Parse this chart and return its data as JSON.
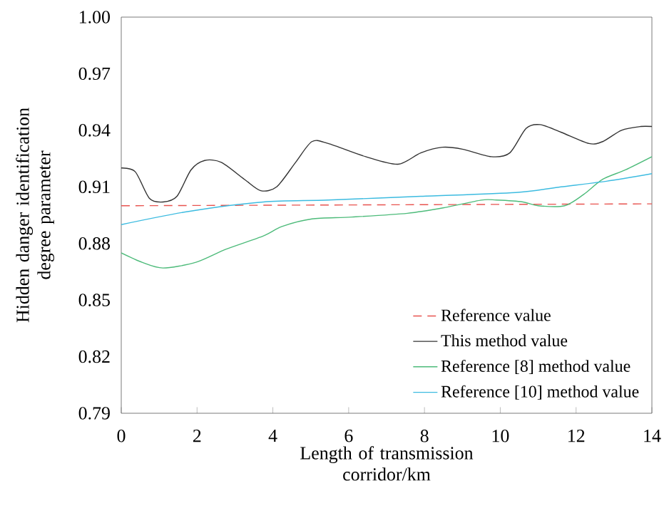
{
  "chart_data": {
    "type": "line",
    "xlabel": "Length of transmission corridor/km",
    "ylabel": "Hidden danger identification degree parameter",
    "xlim": [
      0,
      14
    ],
    "ylim": [
      0.79,
      1.0
    ],
    "xticks": [
      0,
      2,
      4,
      6,
      8,
      10,
      12,
      14
    ],
    "yticks": [
      {
        "value": 0.79,
        "label": "0.79"
      },
      {
        "value": 0.82,
        "label": "0.82"
      },
      {
        "value": 0.85,
        "label": "0.85"
      },
      {
        "value": 0.88,
        "label": "0.88"
      },
      {
        "value": 0.91,
        "label": "0.91"
      },
      {
        "value": 0.94,
        "label": "0.94"
      },
      {
        "value": 0.97,
        "label": "0.97"
      },
      {
        "value": 1.0,
        "label": "1.00"
      }
    ],
    "grid": false,
    "legend": "bottom right",
    "marker": "none",
    "series": [
      {
        "name": "Reference value",
        "color": "#e8534f",
        "line_style": "dashed",
        "x": [
          0,
          14
        ],
        "values": [
          0.9,
          0.901
        ]
      },
      {
        "name": "This method value",
        "color": "#333333",
        "line_style": "solid",
        "x": [
          0,
          0.37,
          0.74,
          1.1,
          1.47,
          1.84,
          2.2,
          2.64,
          3.25,
          3.68,
          4.1,
          4.6,
          5.03,
          5.46,
          6.45,
          7.3,
          7.9,
          8.47,
          9.0,
          9.76,
          10.25,
          10.68,
          11.05,
          11.6,
          12.34,
          12.7,
          13.2,
          13.7,
          14
        ],
        "values": [
          0.92,
          0.918,
          0.904,
          0.902,
          0.905,
          0.919,
          0.924,
          0.923,
          0.914,
          0.908,
          0.91,
          0.923,
          0.934,
          0.933,
          0.926,
          0.922,
          0.928,
          0.931,
          0.93,
          0.926,
          0.928,
          0.941,
          0.943,
          0.939,
          0.933,
          0.934,
          0.94,
          0.942,
          0.942
        ]
      },
      {
        "name": "Reference [8] method value",
        "color": "#4dbb7a",
        "line_style": "solid",
        "x": [
          0,
          0.55,
          1.1,
          1.97,
          2.77,
          3.75,
          4.24,
          5.03,
          6.08,
          7.55,
          8.53,
          9.5,
          9.9,
          10.6,
          11.0,
          11.7,
          12.2,
          12.7,
          13.3,
          14
        ],
        "values": [
          0.875,
          0.87,
          0.867,
          0.87,
          0.877,
          0.884,
          0.889,
          0.893,
          0.894,
          0.896,
          0.899,
          0.903,
          0.903,
          0.902,
          0.9,
          0.9,
          0.906,
          0.914,
          0.919,
          0.926
        ]
      },
      {
        "name": "Reference [10] method value",
        "color": "#3cbbe0",
        "line_style": "solid",
        "x": [
          0,
          1.78,
          3.75,
          5.46,
          7.9,
          10.4,
          11.6,
          12.8,
          14
        ],
        "values": [
          0.89,
          0.897,
          0.902,
          0.903,
          0.905,
          0.907,
          0.91,
          0.913,
          0.917
        ]
      }
    ]
  }
}
